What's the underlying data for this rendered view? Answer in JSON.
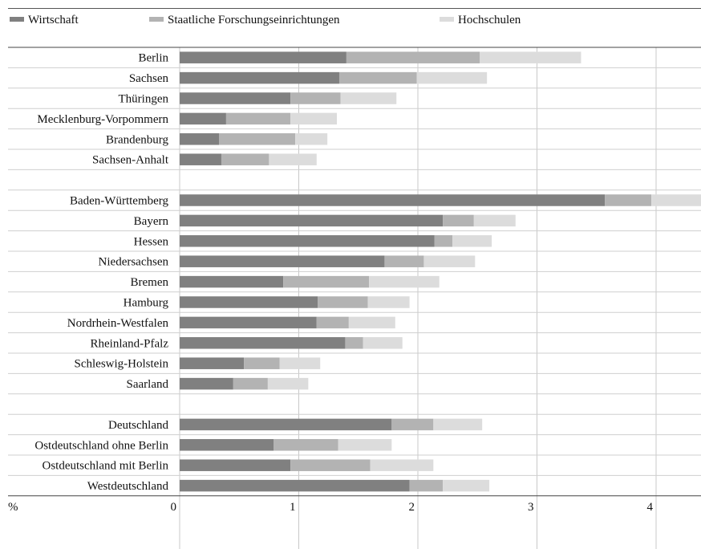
{
  "chart_data": {
    "type": "bar",
    "orientation": "horizontal",
    "stacked": true,
    "categories": [
      "Berlin",
      "Sachsen",
      "Thüringen",
      "Mecklenburg-Vorpommern",
      "Brandenburg",
      "Sachsen-Anhalt",
      "",
      "Baden-Württemberg",
      "Bayern",
      "Hessen",
      "Niedersachsen",
      "Bremen",
      "Hamburg",
      "Nordrhein-Westfalen",
      "Rheinland-Pfalz",
      "Schleswig-Holstein",
      "Saarland",
      "",
      "Deutschland",
      "Ostdeutschland ohne Berlin",
      "Ostdeutschland mit Berlin",
      "Westdeutschland"
    ],
    "series": [
      {
        "name": "Wirtschaft",
        "color": "#808080",
        "values": [
          1.4,
          1.34,
          0.93,
          0.39,
          0.33,
          0.35,
          null,
          3.57,
          2.21,
          2.14,
          1.72,
          0.87,
          1.16,
          1.15,
          1.39,
          0.54,
          0.45,
          null,
          1.78,
          0.79,
          0.93,
          1.93
        ]
      },
      {
        "name": "Staatliche Forschungseinrichtungen",
        "color": "#b3b3b3",
        "values": [
          1.12,
          0.65,
          0.42,
          0.54,
          0.64,
          0.4,
          null,
          0.39,
          0.26,
          0.15,
          0.33,
          0.72,
          0.42,
          0.27,
          0.15,
          0.3,
          0.29,
          null,
          0.35,
          0.54,
          0.67,
          0.28
        ]
      },
      {
        "name": "Hochschulen",
        "color": "#dcdcdc",
        "values": [
          0.85,
          0.59,
          0.47,
          0.39,
          0.27,
          0.4,
          null,
          0.44,
          0.35,
          0.33,
          0.43,
          0.59,
          0.35,
          0.39,
          0.33,
          0.34,
          0.34,
          null,
          0.41,
          0.45,
          0.53,
          0.39
        ]
      }
    ],
    "xlabel": "%",
    "x_ticks": [
      "0",
      "1",
      "2",
      "3",
      "4"
    ],
    "xlim": [
      0,
      4.4
    ],
    "grid": "vertical",
    "legend_position": "top"
  }
}
